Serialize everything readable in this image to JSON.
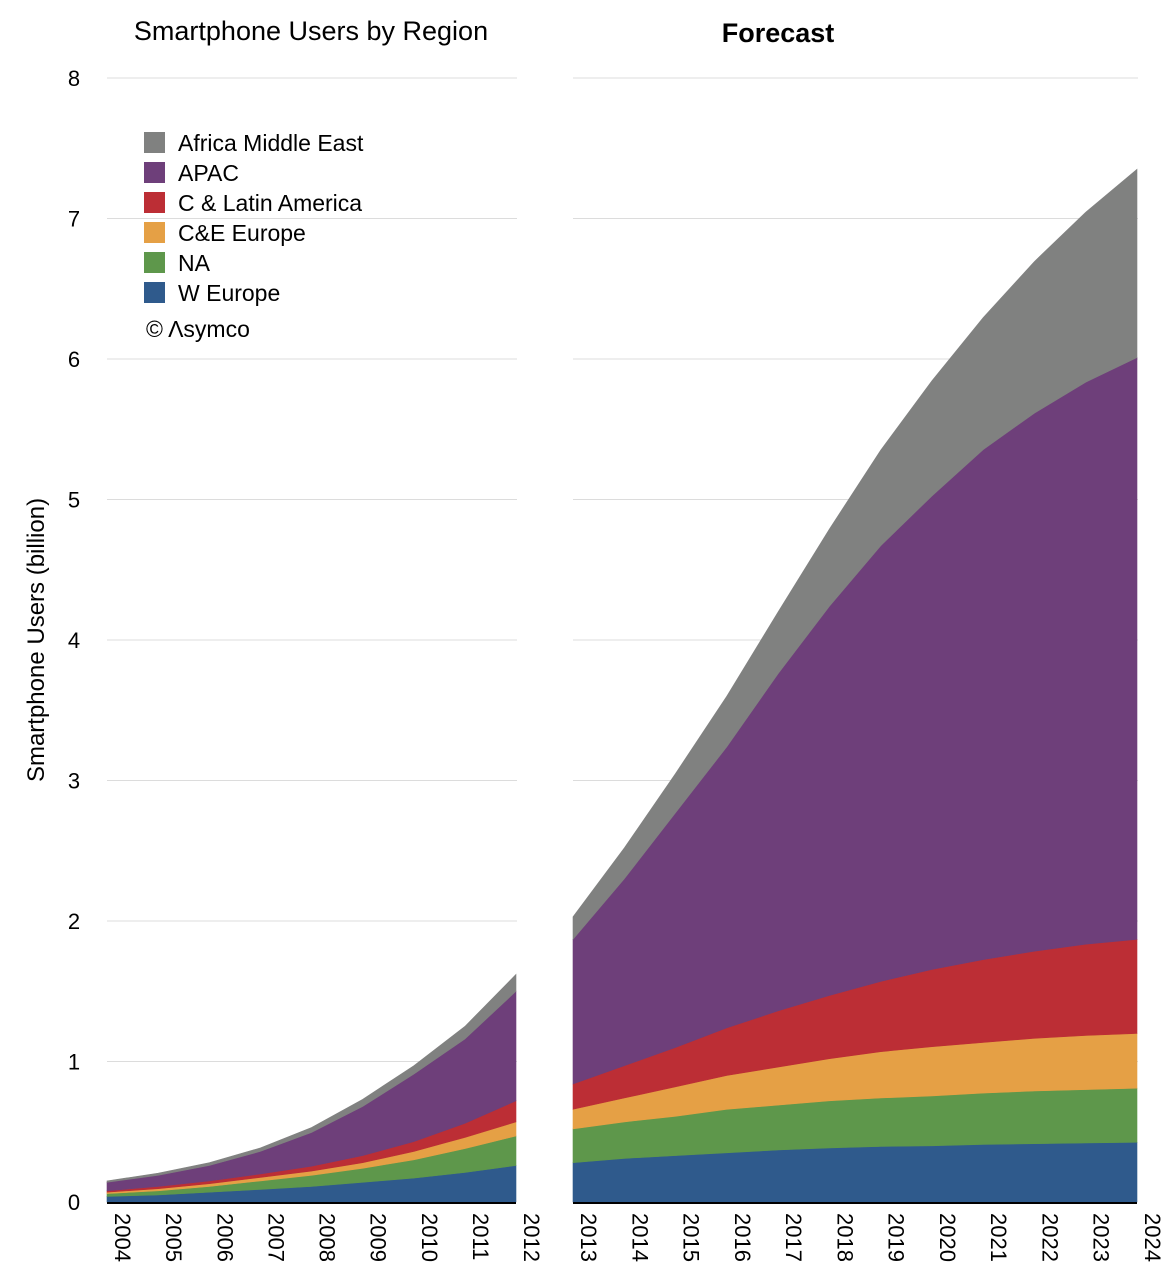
{
  "chart_data": [
    {
      "type": "area",
      "stacked": true,
      "title": "Smartphone Users by Region",
      "ylabel": "Smartphone Users (billion)",
      "ylim": [
        0,
        8
      ],
      "yticks": [
        0,
        1,
        2,
        3,
        4,
        5,
        6,
        7,
        8
      ],
      "grid": true,
      "x": [
        "2004",
        "2005",
        "2006",
        "2007",
        "2008",
        "2009",
        "2010",
        "2011",
        "2012"
      ],
      "series": [
        {
          "name": "W Europe",
          "color": "#2f5a8c",
          "values": [
            0.04,
            0.05,
            0.07,
            0.09,
            0.11,
            0.14,
            0.17,
            0.21,
            0.26
          ]
        },
        {
          "name": "NA",
          "color": "#5e974b",
          "values": [
            0.02,
            0.03,
            0.04,
            0.06,
            0.08,
            0.1,
            0.13,
            0.17,
            0.21
          ]
        },
        {
          "name": "C&E Europe",
          "color": "#e5a045",
          "values": [
            0.01,
            0.015,
            0.02,
            0.025,
            0.03,
            0.04,
            0.06,
            0.08,
            0.1
          ]
        },
        {
          "name": "C & Latin America",
          "color": "#bc2e35",
          "values": [
            0.01,
            0.015,
            0.02,
            0.025,
            0.035,
            0.05,
            0.07,
            0.1,
            0.15
          ]
        },
        {
          "name": "APAC",
          "color": "#6e3f7a",
          "values": [
            0.06,
            0.08,
            0.11,
            0.16,
            0.24,
            0.35,
            0.48,
            0.6,
            0.78
          ]
        },
        {
          "name": "Africa Middle East",
          "color": "#808180",
          "values": [
            0.01,
            0.015,
            0.02,
            0.025,
            0.035,
            0.05,
            0.06,
            0.09,
            0.12
          ]
        }
      ]
    },
    {
      "type": "area",
      "stacked": true,
      "title": "Forecast",
      "ylim": [
        0,
        8
      ],
      "grid": true,
      "x": [
        "2013",
        "2014",
        "2015",
        "2016",
        "2017",
        "2018",
        "2019",
        "2020",
        "2021",
        "2022",
        "2023",
        "2024"
      ],
      "series": [
        {
          "name": "W Europe",
          "color": "#2f5a8c",
          "values": [
            0.28,
            0.31,
            0.33,
            0.35,
            0.37,
            0.385,
            0.395,
            0.4,
            0.41,
            0.415,
            0.42,
            0.425
          ]
        },
        {
          "name": "NA",
          "color": "#5e974b",
          "values": [
            0.24,
            0.26,
            0.28,
            0.31,
            0.32,
            0.335,
            0.345,
            0.355,
            0.365,
            0.375,
            0.38,
            0.385
          ]
        },
        {
          "name": "C&E Europe",
          "color": "#e5a045",
          "values": [
            0.14,
            0.17,
            0.21,
            0.24,
            0.27,
            0.3,
            0.33,
            0.35,
            0.36,
            0.375,
            0.385,
            0.39
          ]
        },
        {
          "name": "C & Latin America",
          "color": "#bc2e35",
          "values": [
            0.18,
            0.23,
            0.28,
            0.34,
            0.4,
            0.45,
            0.5,
            0.55,
            0.59,
            0.62,
            0.65,
            0.67
          ]
        },
        {
          "name": "APAC",
          "color": "#6e3f7a",
          "values": [
            1.03,
            1.33,
            1.67,
            2.0,
            2.4,
            2.77,
            3.1,
            3.37,
            3.63,
            3.83,
            4.0,
            4.14
          ]
        },
        {
          "name": "Africa Middle East",
          "color": "#808180",
          "values": [
            0.16,
            0.22,
            0.28,
            0.36,
            0.44,
            0.55,
            0.68,
            0.82,
            0.94,
            1.08,
            1.21,
            1.34
          ]
        }
      ]
    }
  ],
  "legend": {
    "entries": [
      "Africa Middle East",
      "APAC",
      "C & Latin America",
      "C&E Europe",
      "NA",
      "W Europe"
    ],
    "copyright": "© Λsymco"
  }
}
